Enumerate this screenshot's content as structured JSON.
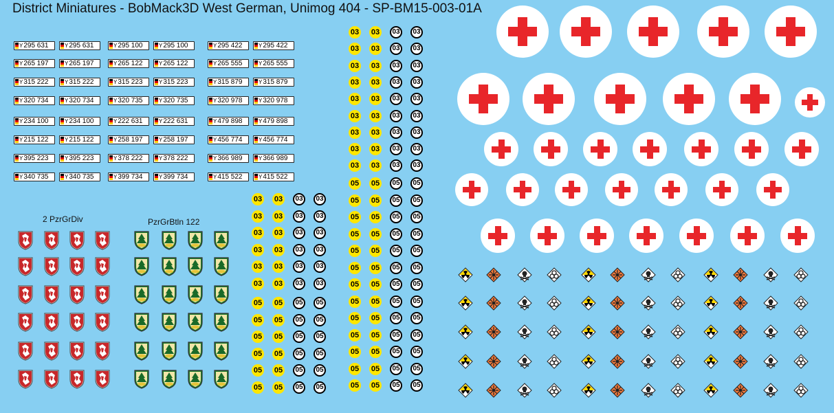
{
  "title": "District Miniatures - BobMack3D West German, Unimog 404 - SP-BM15-003-01A",
  "labels": {
    "div": "2 PzrGrDiv",
    "btln": "PzrGrBtln 122"
  },
  "plate_prefix": "Y",
  "plates": [
    [
      "295 631",
      "295 100",
      "295 422"
    ],
    [
      "265 197",
      "265 122",
      "265 555"
    ],
    [
      "315 222",
      "315 223",
      "315 879"
    ],
    [
      "320 734",
      "320 735",
      "320 978"
    ],
    [
      "234 100",
      "222 631",
      "479 898"
    ],
    [
      "215 122",
      "258 197",
      "456 774"
    ],
    [
      "395 223",
      "378 222",
      "366 989"
    ],
    [
      "340 735",
      "399 734",
      "415 522"
    ]
  ],
  "numbers": {
    "a": "03",
    "b": "05"
  },
  "colors": {
    "background": "#87cff2",
    "cross_red": "#e8262a",
    "number_yellow": "#ffe600",
    "shield_red": "#c8282a",
    "shield_green": "#1e7a2e",
    "hazard_orange": "#f07a3c",
    "hazard_yellow": "#ffd800"
  },
  "icons": [
    "red-cross-icon",
    "division-shield-icon",
    "battalion-shield-icon",
    "radiation-icon",
    "explosive-icon",
    "poison-skull-icon",
    "biohazard-icon"
  ]
}
